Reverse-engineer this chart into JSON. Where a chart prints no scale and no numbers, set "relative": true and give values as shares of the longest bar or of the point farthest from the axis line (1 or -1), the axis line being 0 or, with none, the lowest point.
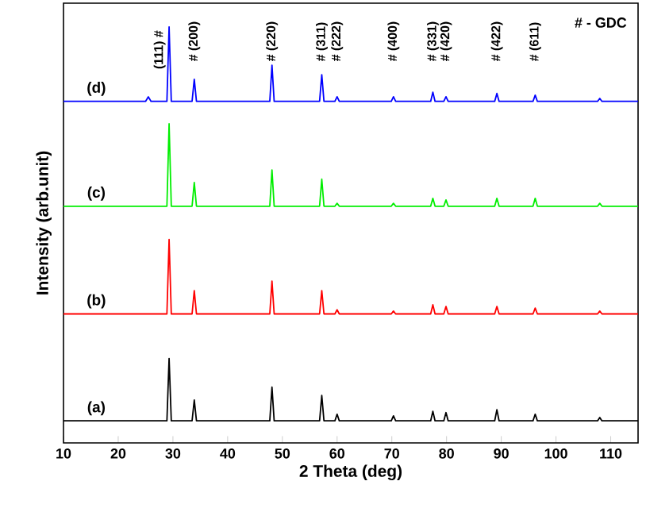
{
  "chart_data": {
    "type": "line",
    "relative": true,
    "xlabel": "2 Theta (deg)",
    "ylabel": "Intensity (arb.unit)",
    "xlim": [
      10,
      115
    ],
    "xticks": [
      10,
      20,
      30,
      40,
      50,
      60,
      70,
      80,
      90,
      100,
      110
    ],
    "legend": false,
    "grid": false,
    "marker": "none",
    "x": [
      10,
      25,
      25.5,
      26,
      28.9,
      29.3,
      29.7,
      33.5,
      33.9,
      34.3,
      47.7,
      48.1,
      48.5,
      56.8,
      57.2,
      57.6,
      59.6,
      60,
      60.4,
      69.9,
      70.3,
      70.7,
      77.1,
      77.5,
      77.9,
      79.5,
      79.9,
      80.3,
      88.8,
      89.2,
      89.6,
      95.8,
      96.2,
      96.6,
      107.6,
      108,
      108.4,
      115
    ],
    "series": [
      {
        "name": "(a)",
        "color": "#000000",
        "values": [
          0.053,
          0.053,
          0.053,
          0.053,
          0.053,
          0.203,
          0.053,
          0.053,
          0.103,
          0.053,
          0.053,
          0.134,
          0.053,
          0.053,
          0.114,
          0.053,
          0.053,
          0.069,
          0.053,
          0.053,
          0.065,
          0.053,
          0.053,
          0.076,
          0.053,
          0.053,
          0.073,
          0.053,
          0.053,
          0.08,
          0.053,
          0.053,
          0.069,
          0.053,
          0.053,
          0.061,
          0.053,
          0.053
        ]
      },
      {
        "name": "(b)",
        "color": "#ff0000",
        "values": [
          0.31,
          0.31,
          0.31,
          0.31,
          0.31,
          0.489,
          0.31,
          0.31,
          0.366,
          0.31,
          0.31,
          0.389,
          0.31,
          0.31,
          0.366,
          0.31,
          0.31,
          0.32,
          0.31,
          0.31,
          0.317,
          0.31,
          0.31,
          0.332,
          0.31,
          0.31,
          0.328,
          0.31,
          0.31,
          0.328,
          0.31,
          0.31,
          0.324,
          0.31,
          0.31,
          0.317,
          0.31,
          0.31
        ]
      },
      {
        "name": "(c)",
        "color": "#00ee00",
        "values": [
          0.569,
          0.569,
          0.569,
          0.569,
          0.569,
          0.767,
          0.569,
          0.569,
          0.626,
          0.569,
          0.569,
          0.656,
          0.569,
          0.569,
          0.634,
          0.569,
          0.569,
          0.576,
          0.569,
          0.569,
          0.576,
          0.569,
          0.569,
          0.588,
          0.569,
          0.569,
          0.584,
          0.569,
          0.569,
          0.588,
          0.569,
          0.569,
          0.588,
          0.569,
          0.569,
          0.576,
          0.569,
          0.569
        ]
      },
      {
        "name": "(d)",
        "color": "#0000ff",
        "values": [
          0.821,
          0.821,
          0.832,
          0.821,
          0.821,
          1.0,
          0.821,
          0.821,
          0.874,
          0.821,
          0.821,
          0.908,
          0.821,
          0.821,
          0.885,
          0.821,
          0.821,
          0.832,
          0.821,
          0.821,
          0.832,
          0.821,
          0.821,
          0.843,
          0.821,
          0.821,
          0.832,
          0.821,
          0.821,
          0.84,
          0.821,
          0.821,
          0.836,
          0.821,
          0.821,
          0.828,
          0.821,
          0.821
        ]
      }
    ],
    "annotations": [
      {
        "text": "(111) #",
        "x": 29.3,
        "y": 1.0
      },
      {
        "text": "# (200)",
        "x": 33.9,
        "y": 0.874
      },
      {
        "text": "# (220)",
        "x": 48.1,
        "y": 0.908
      },
      {
        "text": "# (311)",
        "x": 57.2,
        "y": 0.885
      },
      {
        "text": "# (222)",
        "x": 60,
        "y": 0.832
      },
      {
        "text": "# (400)",
        "x": 70.3,
        "y": 0.832
      },
      {
        "text": "# (331)",
        "x": 77.5,
        "y": 0.843
      },
      {
        "text": "# (420)",
        "x": 79.9,
        "y": 0.832
      },
      {
        "text": "# (422)",
        "x": 89.2,
        "y": 0.84
      },
      {
        "text": "# (611)",
        "x": 96.2,
        "y": 0.836
      },
      "# - GDC"
    ]
  }
}
